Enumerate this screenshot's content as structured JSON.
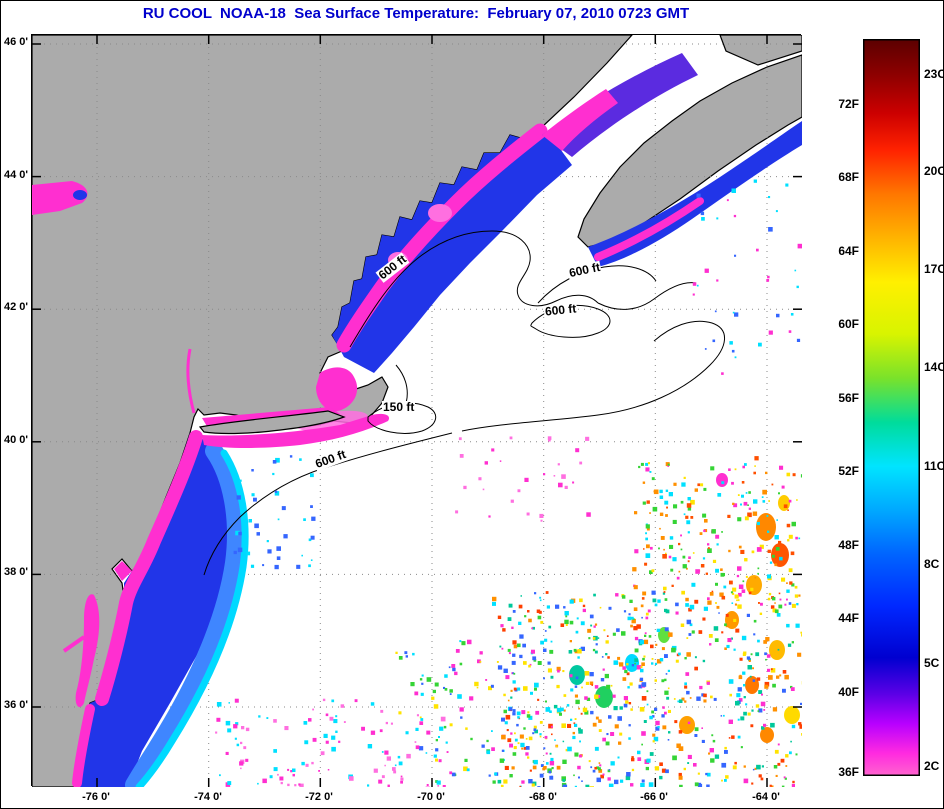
{
  "title": {
    "text": "RU COOL  NOAA-18  Sea Surface Temperature:  February 07, 2010 0723 GMT"
  },
  "axes": {
    "x_ticks": [
      "-76 0'",
      "-74 0'",
      "-72 0'",
      "-70 0'",
      "-68 0'",
      "-66 0'",
      "-64 0'"
    ],
    "y_ticks": [
      "46 0'",
      "44 0'",
      "42 0'",
      "40 0'",
      "38 0'",
      "36 0'"
    ]
  },
  "contours": {
    "labels": [
      "600 ft",
      "600 ft",
      "600 ft",
      "150 ft",
      "600 ft"
    ]
  },
  "colorbar": {
    "f_labels": [
      "72F",
      "68F",
      "64F",
      "60F",
      "56F",
      "52F",
      "48F",
      "44F",
      "40F",
      "36F"
    ],
    "c_labels": [
      "23C",
      "20C",
      "17C",
      "14C",
      "11C",
      "8C",
      "5C",
      "2C"
    ],
    "stops": [
      "#5c0000",
      "#900000",
      "#cc0000",
      "#ff2200",
      "#ff7700",
      "#ffb400",
      "#fff000",
      "#d8f400",
      "#7ae22a",
      "#00dc9b",
      "#00e4ff",
      "#00a8ff",
      "#0064ff",
      "#0028ff",
      "#0000d0",
      "#5c00e6",
      "#b800ff",
      "#ff2ae0",
      "#ff63cf"
    ]
  },
  "colors": {
    "title_blue": "#0000cc",
    "land_gray": "#ababab",
    "ocean_white": "#ffffff",
    "coast_black": "#000000",
    "sst_magenta": "#ff2fd0",
    "sst_pink": "#ff6fe0",
    "sst_blue": "#2135e8",
    "sst_lightblue": "#3f86ff",
    "sst_cyan": "#00d9ff",
    "sst_purple": "#5b2be0"
  }
}
